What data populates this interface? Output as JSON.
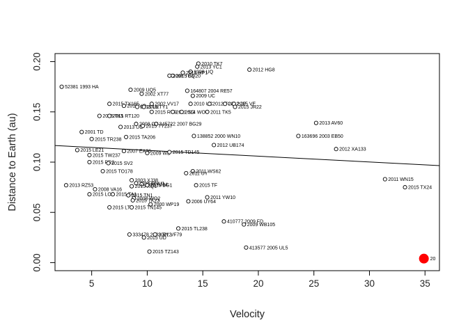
{
  "chart_data": {
    "type": "scatter",
    "title": "",
    "xlabel": "Velocity",
    "ylabel": "Distance to Earth (au)",
    "xlim": [
      1.7,
      36.3
    ],
    "ylim": [
      -0.008,
      0.208
    ],
    "x_ticks": [
      5,
      10,
      15,
      20,
      25,
      30,
      35
    ],
    "y_ticks": [
      0.0,
      0.05,
      0.1,
      0.15,
      0.2
    ],
    "y_tick_labels": [
      "0.00",
      "0.05",
      "0.10",
      "0.15",
      "0.20"
    ],
    "trend_line": {
      "x": [
        1.7,
        36.3
      ],
      "y": [
        0.1165,
        0.0965
      ]
    },
    "highlight_color": "#ff0000",
    "points": [
      {
        "x": 14.6,
        "y": 0.198,
        "label": "2010 TK7"
      },
      {
        "x": 14.5,
        "y": 0.195,
        "label": "2013 YC1"
      },
      {
        "x": 19.2,
        "y": 0.192,
        "label": "2012 HG8"
      },
      {
        "x": 13.9,
        "y": 0.19,
        "label": "1998 UQ"
      },
      {
        "x": 13.2,
        "y": 0.189,
        "label": "2015 HP1"
      },
      {
        "x": 12.3,
        "y": 0.186,
        "label": "2015 BQ20"
      },
      {
        "x": 12.0,
        "y": 0.186,
        "label": "2008 TC3"
      },
      {
        "x": 2.3,
        "y": 0.175,
        "label": "52381 1993 HA"
      },
      {
        "x": 8.5,
        "y": 0.172,
        "label": "2009 UQ5"
      },
      {
        "x": 13.6,
        "y": 0.171,
        "label": "164807 2004 RE57"
      },
      {
        "x": 9.5,
        "y": 0.168,
        "label": "2002 XT77"
      },
      {
        "x": 14.1,
        "y": 0.166,
        "label": "2009 UC"
      },
      {
        "x": 6.6,
        "y": 0.158,
        "label": "2015 TX165"
      },
      {
        "x": 10.4,
        "y": 0.158,
        "label": "2002 VV17"
      },
      {
        "x": 13.9,
        "y": 0.158,
        "label": "2010 UC"
      },
      {
        "x": 15.6,
        "y": 0.158,
        "label": "2012 TC4"
      },
      {
        "x": 17.0,
        "y": 0.158,
        "label": "2012 JP"
      },
      {
        "x": 17.8,
        "y": 0.158,
        "label": "2015 VE"
      },
      {
        "x": 7.9,
        "y": 0.156,
        "label": "2015 VQ"
      },
      {
        "x": 9.1,
        "y": 0.155,
        "label": "2015 UE"
      },
      {
        "x": 9.7,
        "y": 0.155,
        "label": "2015 TY1"
      },
      {
        "x": 17.9,
        "y": 0.155,
        "label": "2015 JR22"
      },
      {
        "x": 10.4,
        "y": 0.15,
        "label": "2015 RU9"
      },
      {
        "x": 12.3,
        "y": 0.15,
        "label": "2011 SG"
      },
      {
        "x": 13.1,
        "y": 0.15,
        "label": "2014 WO"
      },
      {
        "x": 15.4,
        "y": 0.15,
        "label": "2011 TK5"
      },
      {
        "x": 5.7,
        "y": 0.146,
        "label": "2015 TK1"
      },
      {
        "x": 6.6,
        "y": 0.146,
        "label": "2015 RT120"
      },
      {
        "x": 9.0,
        "y": 0.138,
        "label": "2008 OY"
      },
      {
        "x": 10.8,
        "y": 0.138,
        "label": "345722 2007 BG29"
      },
      {
        "x": 25.2,
        "y": 0.139,
        "label": "2013 AV60"
      },
      {
        "x": 7.6,
        "y": 0.135,
        "label": "2013 UC"
      },
      {
        "x": 9.6,
        "y": 0.136,
        "label": "2015 TY237"
      },
      {
        "x": 4.1,
        "y": 0.13,
        "label": "2001 TD"
      },
      {
        "x": 14.2,
        "y": 0.126,
        "label": "138852 2000 WN10"
      },
      {
        "x": 23.6,
        "y": 0.126,
        "label": "163696 2003 EB50"
      },
      {
        "x": 5.0,
        "y": 0.123,
        "label": "2015 TR238"
      },
      {
        "x": 8.1,
        "y": 0.125,
        "label": "2015 TA206"
      },
      {
        "x": 16.0,
        "y": 0.117,
        "label": "2012 UB174"
      },
      {
        "x": 27.0,
        "y": 0.113,
        "label": "2012 XA133"
      },
      {
        "x": 3.7,
        "y": 0.112,
        "label": "2015 LE21"
      },
      {
        "x": 7.9,
        "y": 0.111,
        "label": "2007 EA26"
      },
      {
        "x": 10.0,
        "y": 0.109,
        "label": "2009 WB"
      },
      {
        "x": 12.0,
        "y": 0.11,
        "label": "2015 TD145"
      },
      {
        "x": 4.8,
        "y": 0.107,
        "label": "2015 TW237"
      },
      {
        "x": 4.8,
        "y": 0.1,
        "label": "2015 PR2"
      },
      {
        "x": 6.5,
        "y": 0.099,
        "label": "2015 SV2"
      },
      {
        "x": 6.0,
        "y": 0.091,
        "label": "2015 TO178"
      },
      {
        "x": 14.1,
        "y": 0.091,
        "label": "2011 WS62"
      },
      {
        "x": 13.5,
        "y": 0.089,
        "label": "2011 UY"
      },
      {
        "x": 31.4,
        "y": 0.083,
        "label": "2011 WN15"
      },
      {
        "x": 8.6,
        "y": 0.082,
        "label": "2003 XJ38"
      },
      {
        "x": 9.0,
        "y": 0.079,
        "label": "2015 ENU1"
      },
      {
        "x": 9.5,
        "y": 0.078,
        "label": "2013 AJ14"
      },
      {
        "x": 2.7,
        "y": 0.077,
        "label": "2013 RZ53"
      },
      {
        "x": 8.6,
        "y": 0.076,
        "label": "2015 XQ1"
      },
      {
        "x": 10.0,
        "y": 0.077,
        "label": "2015 BG1"
      },
      {
        "x": 14.4,
        "y": 0.077,
        "label": "2015 TF"
      },
      {
        "x": 33.2,
        "y": 0.075,
        "label": "2015 TX24"
      },
      {
        "x": 5.3,
        "y": 0.073,
        "label": "2008 VA16"
      },
      {
        "x": 4.8,
        "y": 0.068,
        "label": "2015 LO3"
      },
      {
        "x": 6.9,
        "y": 0.068,
        "label": "2015 TA1"
      },
      {
        "x": 8.3,
        "y": 0.067,
        "label": "2015 TN1"
      },
      {
        "x": 8.8,
        "y": 0.064,
        "label": "2008 WO2"
      },
      {
        "x": 15.4,
        "y": 0.065,
        "label": "2011 YW10"
      },
      {
        "x": 8.7,
        "y": 0.062,
        "label": "2015 TK23"
      },
      {
        "x": 13.7,
        "y": 0.061,
        "label": "2006 UY64"
      },
      {
        "x": 10.3,
        "y": 0.058,
        "label": "2000 WP19"
      },
      {
        "x": 6.6,
        "y": 0.055,
        "label": "2015 LT1"
      },
      {
        "x": 8.6,
        "y": 0.055,
        "label": "2015 TN145"
      },
      {
        "x": 16.9,
        "y": 0.041,
        "label": "410777 2009 FD"
      },
      {
        "x": 18.7,
        "y": 0.038,
        "label": "2009 WB105"
      },
      {
        "x": 12.8,
        "y": 0.034,
        "label": "2015 TL238"
      },
      {
        "x": 8.4,
        "y": 0.028,
        "label": "333478 2003 RY2"
      },
      {
        "x": 10.7,
        "y": 0.028,
        "label": "2001 VF79"
      },
      {
        "x": 9.7,
        "y": 0.025,
        "label": "2015 UD"
      },
      {
        "x": 18.9,
        "y": 0.015,
        "label": "413577 2005 UL5"
      },
      {
        "x": 10.2,
        "y": 0.011,
        "label": "2015 TZ143"
      },
      {
        "x": 34.9,
        "y": 0.004,
        "label": "20",
        "highlight": true
      }
    ]
  }
}
